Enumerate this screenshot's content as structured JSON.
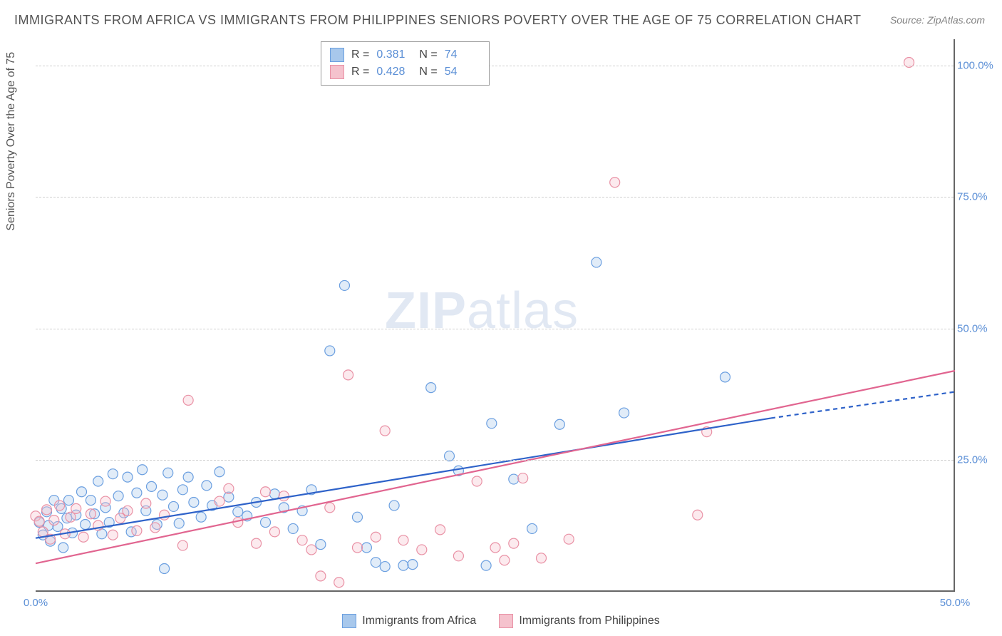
{
  "title": "IMMIGRANTS FROM AFRICA VS IMMIGRANTS FROM PHILIPPINES SENIORS POVERTY OVER THE AGE OF 75 CORRELATION CHART",
  "source": "Source: ZipAtlas.com",
  "y_axis_title": "Seniors Poverty Over the Age of 75",
  "watermark": {
    "bold": "ZIP",
    "light": "atlas"
  },
  "chart": {
    "type": "scatter",
    "background_color": "#ffffff",
    "grid_color": "#d0d0d0",
    "grid_dash": "4,4",
    "axis_color": "#666666",
    "tick_label_color": "#5b8fd6",
    "tick_fontsize": 15,
    "title_fontsize": 18,
    "xlim": [
      0,
      50
    ],
    "ylim": [
      0,
      105
    ],
    "x_ticks": [
      {
        "v": 0,
        "label": "0.0%"
      },
      {
        "v": 50,
        "label": "50.0%"
      }
    ],
    "y_ticks": [
      {
        "v": 25,
        "label": "25.0%"
      },
      {
        "v": 50,
        "label": "50.0%"
      },
      {
        "v": 75,
        "label": "75.0%"
      },
      {
        "v": 100,
        "label": "100.0%"
      }
    ],
    "marker_radius": 7,
    "marker_stroke_width": 1.2,
    "marker_fill_opacity": 0.35,
    "line_width": 2.2,
    "series": [
      {
        "name": "Immigrants from Africa",
        "color_fill": "#a8c8ec",
        "color_stroke": "#6b9fe0",
        "line_color": "#2e62c9",
        "R": "0.381",
        "N": "74",
        "trend": {
          "x1": 0,
          "y1": 10.2,
          "x2": 40,
          "y2": 33,
          "dash_extend_to": 50,
          "y_extend": 38
        },
        "points": [
          [
            0.2,
            13.2
          ],
          [
            0.4,
            10.8
          ],
          [
            0.6,
            15.2
          ],
          [
            0.7,
            12.6
          ],
          [
            0.8,
            9.6
          ],
          [
            1.0,
            17.4
          ],
          [
            1.2,
            12.4
          ],
          [
            1.4,
            15.8
          ],
          [
            1.5,
            8.4
          ],
          [
            1.7,
            14.0
          ],
          [
            1.8,
            17.4
          ],
          [
            2.0,
            11.2
          ],
          [
            2.2,
            14.6
          ],
          [
            2.5,
            19.0
          ],
          [
            2.7,
            12.8
          ],
          [
            3.0,
            17.4
          ],
          [
            3.2,
            14.8
          ],
          [
            3.4,
            21.0
          ],
          [
            3.6,
            11.0
          ],
          [
            3.8,
            16.0
          ],
          [
            4.0,
            13.2
          ],
          [
            4.2,
            22.4
          ],
          [
            4.5,
            18.2
          ],
          [
            4.8,
            15.0
          ],
          [
            5.0,
            21.8
          ],
          [
            5.2,
            11.4
          ],
          [
            5.5,
            18.8
          ],
          [
            5.8,
            23.2
          ],
          [
            6.0,
            15.4
          ],
          [
            6.3,
            20.0
          ],
          [
            6.6,
            12.8
          ],
          [
            6.9,
            18.4
          ],
          [
            7.2,
            22.6
          ],
          [
            7.5,
            16.2
          ],
          [
            7.8,
            13.0
          ],
          [
            8.0,
            19.4
          ],
          [
            8.3,
            21.8
          ],
          [
            8.6,
            17.0
          ],
          [
            9.0,
            14.2
          ],
          [
            9.3,
            20.2
          ],
          [
            9.6,
            16.4
          ],
          [
            10.0,
            22.8
          ],
          [
            10.5,
            18.0
          ],
          [
            11.0,
            15.2
          ],
          [
            11.5,
            14.4
          ],
          [
            12.0,
            17.0
          ],
          [
            12.5,
            13.2
          ],
          [
            13.0,
            18.6
          ],
          [
            13.5,
            16.0
          ],
          [
            14.0,
            12.0
          ],
          [
            14.5,
            15.4
          ],
          [
            15.0,
            19.4
          ],
          [
            15.5,
            9.0
          ],
          [
            16.0,
            45.8
          ],
          [
            16.8,
            58.2
          ],
          [
            17.5,
            14.2
          ],
          [
            18.0,
            8.4
          ],
          [
            18.5,
            5.6
          ],
          [
            19.0,
            4.8
          ],
          [
            19.5,
            16.4
          ],
          [
            20.0,
            5.0
          ],
          [
            20.5,
            5.2
          ],
          [
            21.5,
            38.8
          ],
          [
            22.5,
            25.8
          ],
          [
            23.0,
            23.0
          ],
          [
            24.5,
            5.0
          ],
          [
            24.8,
            32.0
          ],
          [
            26.0,
            21.4
          ],
          [
            27.0,
            12.0
          ],
          [
            28.5,
            31.8
          ],
          [
            30.5,
            62.6
          ],
          [
            32.0,
            34.0
          ],
          [
            37.5,
            40.8
          ],
          [
            7.0,
            4.4
          ]
        ]
      },
      {
        "name": "Immigrants from Philippines",
        "color_fill": "#f5c2cd",
        "color_stroke": "#e991a5",
        "line_color": "#e16590",
        "R": "0.428",
        "N": "54",
        "trend": {
          "x1": 0,
          "y1": 5.4,
          "x2": 50,
          "y2": 42
        },
        "points": [
          [
            0.0,
            14.4
          ],
          [
            0.2,
            13.4
          ],
          [
            0.4,
            11.4
          ],
          [
            0.6,
            15.6
          ],
          [
            0.8,
            10.0
          ],
          [
            1.0,
            13.6
          ],
          [
            1.3,
            16.4
          ],
          [
            1.6,
            11.0
          ],
          [
            1.9,
            14.2
          ],
          [
            2.2,
            15.8
          ],
          [
            2.6,
            10.4
          ],
          [
            3.0,
            14.8
          ],
          [
            3.4,
            12.6
          ],
          [
            3.8,
            17.2
          ],
          [
            4.2,
            10.8
          ],
          [
            4.6,
            14.0
          ],
          [
            5.0,
            15.4
          ],
          [
            5.5,
            11.6
          ],
          [
            6.0,
            16.8
          ],
          [
            6.5,
            12.2
          ],
          [
            7.0,
            14.6
          ],
          [
            8.0,
            8.8
          ],
          [
            8.3,
            36.4
          ],
          [
            10.0,
            17.2
          ],
          [
            10.5,
            19.6
          ],
          [
            11.0,
            13.2
          ],
          [
            12.0,
            9.2
          ],
          [
            12.5,
            19.0
          ],
          [
            13.0,
            11.4
          ],
          [
            13.5,
            18.2
          ],
          [
            14.5,
            9.8
          ],
          [
            15.0,
            8.0
          ],
          [
            16.0,
            16.0
          ],
          [
            16.5,
            1.8
          ],
          [
            17.0,
            41.2
          ],
          [
            17.5,
            8.4
          ],
          [
            18.5,
            10.4
          ],
          [
            19.0,
            30.6
          ],
          [
            20.0,
            9.8
          ],
          [
            21.0,
            8.0
          ],
          [
            22.0,
            11.8
          ],
          [
            23.0,
            6.8
          ],
          [
            24.0,
            21.0
          ],
          [
            25.0,
            8.4
          ],
          [
            25.5,
            6.0
          ],
          [
            26.0,
            9.2
          ],
          [
            26.5,
            21.6
          ],
          [
            27.5,
            6.4
          ],
          [
            29.0,
            10.0
          ],
          [
            31.5,
            77.8
          ],
          [
            36.0,
            14.6
          ],
          [
            36.5,
            30.4
          ],
          [
            47.5,
            100.6
          ],
          [
            15.5,
            3.0
          ]
        ]
      }
    ]
  },
  "legend_bottom": [
    {
      "label": "Immigrants from Africa",
      "fill": "#a8c8ec",
      "stroke": "#6b9fe0"
    },
    {
      "label": "Immigrants from Philippines",
      "fill": "#f5c2cd",
      "stroke": "#e991a5"
    }
  ]
}
